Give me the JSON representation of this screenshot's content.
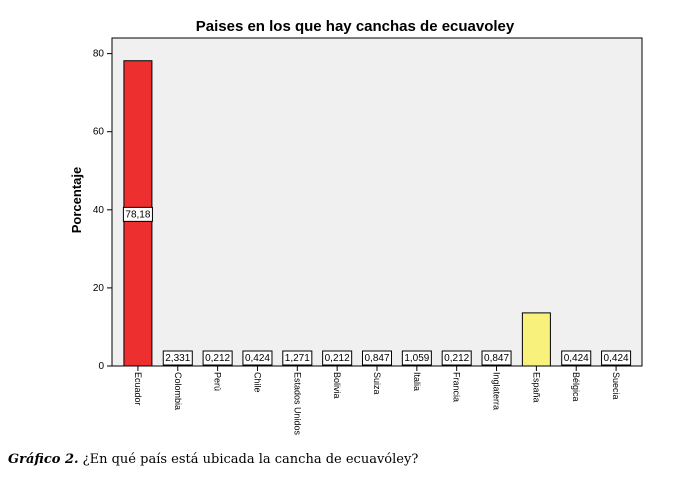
{
  "chart_data": {
    "type": "bar",
    "title": "Paises en los que hay canchas de ecuavoley",
    "xlabel": "",
    "ylabel": "Porcentaje",
    "ylim": [
      0,
      84
    ],
    "yticks": [
      0,
      20,
      40,
      60,
      80
    ],
    "grid": false,
    "categories": [
      "Ecuador",
      "Colombia",
      "Perú",
      "Chile",
      "Estados Unidos",
      "Bolivia",
      "Suiza",
      "Italia",
      "Francia",
      "Inglaterra",
      "España",
      "Bélgica",
      "Suecia"
    ],
    "values": [
      78.18,
      2.331,
      0.212,
      0.424,
      1.271,
      0.212,
      0.847,
      1.059,
      0.212,
      0.847,
      13.6,
      0.424,
      0.424
    ],
    "data_labels": [
      "78,18",
      "2,331",
      "0,212",
      "0,424",
      "1,271",
      "0,212",
      "0,847",
      "1,059",
      "0,212",
      "0,847",
      "",
      "0,424",
      "0,424"
    ],
    "bar_colors": [
      "#ee2f2f",
      "#ffffff",
      "#ffffff",
      "#ffffff",
      "#ffffff",
      "#ffffff",
      "#ffffff",
      "#ffffff",
      "#ffffff",
      "#ffffff",
      "#f8f27c",
      "#ffffff",
      "#ffffff"
    ],
    "plot_background": "#f0f0f0"
  },
  "caption": {
    "lead": "Gráfico 2.",
    "text": " ¿En qué país está ubicada la cancha de ecuavóley?"
  }
}
